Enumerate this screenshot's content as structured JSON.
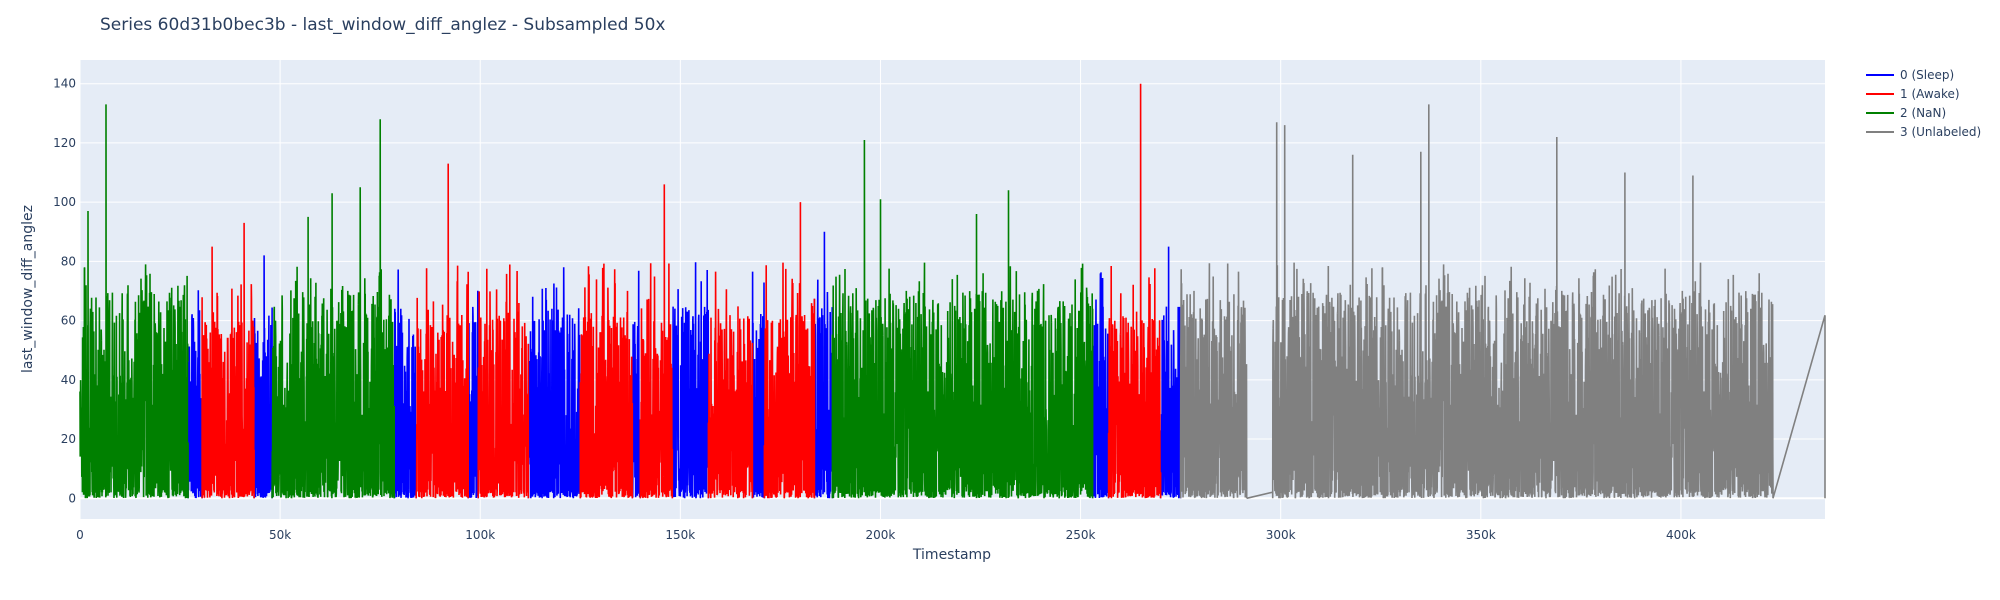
{
  "chart_data": {
    "type": "line",
    "title": "Series 60d31b0bec3b - last_window_diff_anglez - Subsampled 50x",
    "xlabel": "Timestamp",
    "ylabel": "last_window_diff_anglez",
    "xlim": [
      0,
      436000
    ],
    "ylim": [
      -7,
      148
    ],
    "x_ticks": [
      {
        "value": 0,
        "label": "0"
      },
      {
        "value": 50000,
        "label": "50k"
      },
      {
        "value": 100000,
        "label": "100k"
      },
      {
        "value": 150000,
        "label": "150k"
      },
      {
        "value": 200000,
        "label": "200k"
      },
      {
        "value": 250000,
        "label": "250k"
      },
      {
        "value": 300000,
        "label": "300k"
      },
      {
        "value": 350000,
        "label": "350k"
      },
      {
        "value": 400000,
        "label": "400k"
      }
    ],
    "y_ticks": [
      {
        "value": 0,
        "label": "0"
      },
      {
        "value": 20,
        "label": "20"
      },
      {
        "value": 40,
        "label": "40"
      },
      {
        "value": 60,
        "label": "60"
      },
      {
        "value": 80,
        "label": "80"
      },
      {
        "value": 100,
        "label": "100"
      },
      {
        "value": 120,
        "label": "120"
      },
      {
        "value": 140,
        "label": "140"
      }
    ],
    "grid": true,
    "legend_position": "top-right",
    "series": [
      {
        "name": "0 (Sleep)",
        "color": "#0000ff",
        "segments": [
          [
            27000,
            30500
          ],
          [
            43500,
            48000
          ],
          [
            78500,
            84000
          ],
          [
            97000,
            99500
          ],
          [
            112000,
            125000
          ],
          [
            138000,
            140000
          ],
          [
            148000,
            157000
          ],
          [
            168000,
            171000
          ],
          [
            183500,
            188000
          ],
          [
            253000,
            257000
          ],
          [
            270000,
            275000
          ]
        ],
        "peaks": [
          {
            "x": 46000,
            "y": 82
          },
          {
            "x": 186000,
            "y": 90
          },
          {
            "x": 272000,
            "y": 85
          }
        ],
        "y_typical_max": 65
      },
      {
        "name": "1 (Awake)",
        "color": "#ff0000",
        "segments": [
          [
            30500,
            43500
          ],
          [
            84000,
            97000
          ],
          [
            99500,
            112000
          ],
          [
            125000,
            138000
          ],
          [
            140000,
            148000
          ],
          [
            157000,
            168000
          ],
          [
            171000,
            183500
          ],
          [
            257000,
            270000
          ]
        ],
        "peaks": [
          {
            "x": 33000,
            "y": 85
          },
          {
            "x": 41000,
            "y": 93
          },
          {
            "x": 92000,
            "y": 113
          },
          {
            "x": 146000,
            "y": 106
          },
          {
            "x": 180000,
            "y": 100
          },
          {
            "x": 265000,
            "y": 140
          }
        ],
        "y_typical_max": 62
      },
      {
        "name": "2 (NaN)",
        "color": "#008000",
        "segments": [
          [
            0,
            27000
          ],
          [
            48000,
            78500
          ],
          [
            188000,
            253000
          ]
        ],
        "peaks": [
          {
            "x": 6500,
            "y": 133
          },
          {
            "x": 2000,
            "y": 97
          },
          {
            "x": 57000,
            "y": 95
          },
          {
            "x": 63000,
            "y": 103
          },
          {
            "x": 75000,
            "y": 128
          },
          {
            "x": 70000,
            "y": 105
          },
          {
            "x": 196000,
            "y": 121
          },
          {
            "x": 232000,
            "y": 104
          },
          {
            "x": 224000,
            "y": 96
          },
          {
            "x": 200000,
            "y": 101
          }
        ],
        "y_typical_max": 70
      },
      {
        "name": "3 (Unlabeled)",
        "color": "#808080",
        "segments": [
          [
            275000,
            436000
          ]
        ],
        "peaks": [
          {
            "x": 299000,
            "y": 127
          },
          {
            "x": 301000,
            "y": 126
          },
          {
            "x": 318000,
            "y": 116
          },
          {
            "x": 335000,
            "y": 117
          },
          {
            "x": 337000,
            "y": 133
          },
          {
            "x": 369000,
            "y": 122
          },
          {
            "x": 386000,
            "y": 110
          },
          {
            "x": 403000,
            "y": 109
          }
        ],
        "flat_intervals": [
          [
            291500,
            298000
          ],
          [
            423000,
            436000
          ]
        ],
        "y_typical_max": 70
      }
    ]
  }
}
